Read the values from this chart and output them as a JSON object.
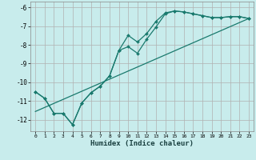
{
  "xlabel": "Humidex (Indice chaleur)",
  "bg_color": "#c8ecec",
  "grid_color": "#b0b0b0",
  "line_color": "#1a7a6e",
  "xlim": [
    -0.5,
    23.5
  ],
  "ylim": [
    -12.6,
    -5.7
  ],
  "yticks": [
    -12,
    -11,
    -10,
    -9,
    -8,
    -7,
    -6
  ],
  "xticks": [
    0,
    1,
    2,
    3,
    4,
    5,
    6,
    7,
    8,
    9,
    10,
    11,
    12,
    13,
    14,
    15,
    16,
    17,
    18,
    19,
    20,
    21,
    22,
    23
  ],
  "line1_x": [
    0,
    1,
    2,
    3,
    4,
    5,
    6,
    7,
    8,
    9,
    10,
    11,
    12,
    13,
    14,
    15,
    16,
    17,
    18,
    19,
    20,
    21,
    22,
    23
  ],
  "line1_y": [
    -10.5,
    -10.85,
    -11.65,
    -11.65,
    -12.25,
    -11.1,
    -10.55,
    -10.2,
    -9.65,
    -8.3,
    -8.1,
    -8.45,
    -7.7,
    -7.05,
    -6.35,
    -6.2,
    -6.25,
    -6.35,
    -6.45,
    -6.55,
    -6.55,
    -6.5,
    -6.5,
    -6.6
  ],
  "line2_x": [
    0,
    1,
    2,
    3,
    4,
    5,
    6,
    7,
    8,
    9,
    10,
    11,
    12,
    13,
    14,
    15,
    16,
    17,
    18,
    19,
    20,
    21,
    22,
    23
  ],
  "line2_y": [
    -10.5,
    -10.85,
    -11.65,
    -11.65,
    -12.25,
    -11.1,
    -10.55,
    -10.2,
    -9.65,
    -8.3,
    -7.5,
    -7.85,
    -7.4,
    -6.75,
    -6.3,
    -6.2,
    -6.25,
    -6.35,
    -6.45,
    -6.55,
    -6.55,
    -6.5,
    -6.5,
    -6.6
  ],
  "line3_x": [
    0,
    23
  ],
  "line3_y": [
    -11.55,
    -6.6
  ]
}
